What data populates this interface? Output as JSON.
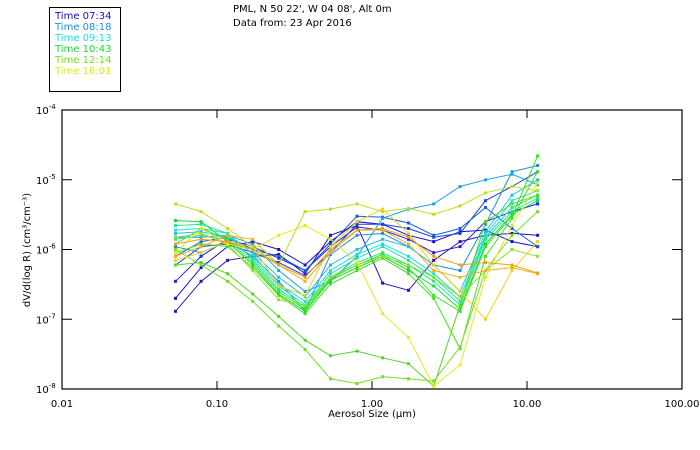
{
  "header": {
    "location": "PML, N 50 22', W 04 08', Alt 0m",
    "date": "Data from: 23 Apr 2016"
  },
  "legend": [
    {
      "label": "Time 07:34",
      "color": "#1010d0"
    },
    {
      "label": "Time 08:18",
      "color": "#1e8fe0"
    },
    {
      "label": "Time 09:13",
      "color": "#20e0d8"
    },
    {
      "label": "Time 10:43",
      "color": "#18d830"
    },
    {
      "label": "Time 12:14",
      "color": "#70e020"
    },
    {
      "label": "Time 16:01",
      "color": "#d8e820"
    }
  ],
  "chart_data": {
    "type": "line",
    "xscale": "log",
    "yscale": "log",
    "xlabel": "Aerosol Size (µm)",
    "ylabel": "dV/d(log R) (cm³/cm⁻³)",
    "xlim": [
      0.01,
      100
    ],
    "ylim": [
      1e-08,
      0.0001
    ],
    "xticks": [
      "0.01",
      "0.10",
      "1.00",
      "10.00",
      "100.00"
    ],
    "yticks": [
      {
        "base": "10",
        "exp": "-4",
        "value": 0.0001
      },
      {
        "base": "10",
        "exp": "-5",
        "value": 1e-05
      },
      {
        "base": "10",
        "exp": "-6",
        "value": 1e-06
      },
      {
        "base": "10",
        "exp": "-7",
        "value": 1e-07
      },
      {
        "base": "10",
        "exp": "-8",
        "value": 1e-08
      }
    ],
    "x": [
      0.054,
      0.079,
      0.117,
      0.17,
      0.25,
      0.37,
      0.54,
      0.8,
      1.17,
      1.72,
      2.5,
      3.7,
      5.4,
      8.0,
      11.7
    ],
    "series": [
      {
        "name": "s1",
        "color": "#3010b0",
        "values": [
          1.3e-07,
          3.5e-07,
          7e-07,
          8e-07,
          8.5e-07,
          4.5e-07,
          1.6e-06,
          2.2e-06,
          3.3e-07,
          2.6e-07,
          7e-07,
          1.3e-06,
          1.6e-06,
          1.7e-06,
          1.6e-06
        ]
      },
      {
        "name": "s2",
        "color": "#1010d0",
        "values": [
          2e-07,
          5.5e-07,
          1.1e-06,
          1.3e-06,
          1e-06,
          6e-07,
          1.3e-06,
          2.5e-06,
          2.3e-06,
          1.6e-06,
          1.3e-06,
          1.8e-06,
          1.9e-06,
          1.3e-06,
          1.1e-06
        ]
      },
      {
        "name": "s3",
        "color": "#2020e8",
        "values": [
          3.5e-07,
          8e-07,
          1.4e-06,
          1.1e-06,
          7.5e-07,
          5e-07,
          1.1e-06,
          2.1e-06,
          1.9e-06,
          1.4e-06,
          9e-07,
          1.1e-06,
          2.5e-06,
          3.5e-06,
          4.5e-06
        ]
      },
      {
        "name": "s4",
        "color": "#1a40e0",
        "values": [
          6e-07,
          1.1e-06,
          1.2e-06,
          9e-07,
          6.5e-07,
          4.2e-07,
          9e-07,
          2.3e-06,
          2.3e-06,
          2e-06,
          1.5e-06,
          1.7e-06,
          5e-06,
          8e-06,
          1.3e-05
        ]
      },
      {
        "name": "s5",
        "color": "#1060e0",
        "values": [
          8e-07,
          1.3e-06,
          1.5e-06,
          1e-06,
          8e-07,
          5e-07,
          1.2e-06,
          3e-06,
          2.9e-06,
          2.4e-06,
          1.6e-06,
          2e-06,
          4e-06,
          2e-06,
          1.1e-06
        ]
      },
      {
        "name": "s6",
        "color": "#1e8fe0",
        "values": [
          1.1e-06,
          9e-07,
          1.3e-06,
          8e-07,
          3.5e-07,
          1.3e-07,
          8.5e-07,
          1.6e-06,
          1.7e-06,
          1.1e-06,
          6e-07,
          5e-07,
          2.3e-06,
          1.3e-05,
          1.6e-05
        ]
      },
      {
        "name": "s7",
        "color": "#1ea0e8",
        "values": [
          1.5e-06,
          1.5e-06,
          1.6e-06,
          1.2e-06,
          5e-07,
          2.5e-07,
          3.5e-07,
          8e-07,
          2.8e-06,
          3.8e-06,
          4.5e-06,
          8e-06,
          1e-05,
          1.2e-05,
          8.5e-06
        ]
      },
      {
        "name": "s8",
        "color": "#20c0e0",
        "values": [
          1.7e-06,
          1.8e-06,
          1.5e-06,
          9e-07,
          4e-07,
          2.1e-07,
          6e-07,
          1e-06,
          1.4e-06,
          1.1e-06,
          6e-07,
          2.5e-07,
          1.8e-06,
          6e-06,
          1e-05
        ]
      },
      {
        "name": "s9",
        "color": "#20e0d8",
        "values": [
          1.9e-06,
          2e-06,
          1.7e-06,
          8.5e-07,
          3.2e-07,
          1.8e-07,
          5e-07,
          8.5e-07,
          1.2e-06,
          8e-07,
          4.5e-07,
          2.1e-07,
          1.6e-06,
          5e-06,
          7e-06
        ]
      },
      {
        "name": "s10",
        "color": "#20e0b0",
        "values": [
          1.4e-06,
          1.6e-06,
          1.4e-06,
          7.5e-07,
          3e-07,
          1.6e-07,
          4.5e-07,
          7.5e-07,
          1.1e-06,
          7e-07,
          4e-07,
          1.8e-07,
          1.5e-06,
          4e-06,
          6e-06
        ]
      },
      {
        "name": "s11",
        "color": "#20e890",
        "values": [
          2.2e-06,
          2.3e-06,
          1.7e-06,
          7e-07,
          2.7e-07,
          1.5e-07,
          4e-07,
          6.5e-07,
          9e-07,
          6e-07,
          3.5e-07,
          1.6e-07,
          1.4e-06,
          3.5e-06,
          5.5e-06
        ]
      },
      {
        "name": "s12",
        "color": "#18d830",
        "values": [
          2.6e-06,
          2.5e-06,
          1.3e-06,
          6e-07,
          2.3e-07,
          1.3e-07,
          3.6e-07,
          5.5e-07,
          8e-07,
          5e-07,
          3e-07,
          1.4e-07,
          1.2e-06,
          3.2e-06,
          5e-06
        ]
      },
      {
        "name": "s13",
        "color": "#30e820",
        "values": [
          1.2e-06,
          2e-06,
          1.4e-06,
          6.5e-07,
          2.5e-07,
          1.4e-07,
          3.8e-07,
          6e-07,
          8.5e-07,
          5.5e-07,
          2.2e-07,
          1.3e-07,
          1.1e-06,
          3e-06,
          2.2e-05
        ]
      },
      {
        "name": "s14",
        "color": "#40e020",
        "values": [
          9e-07,
          1.2e-06,
          1.1e-06,
          5.5e-07,
          2.2e-07,
          1.2e-07,
          3.2e-07,
          5e-07,
          7.5e-07,
          4.5e-07,
          2e-07,
          3.8e-08,
          8e-07,
          2.8e-06,
          1.3e-05
        ]
      },
      {
        "name": "s15",
        "color": "#50d820",
        "values": [
          6e-07,
          6.5e-07,
          4.5e-07,
          2.3e-07,
          1.1e-07,
          5e-08,
          3e-08,
          3.5e-08,
          2.8e-08,
          2.3e-08,
          1.1e-08,
          1.6e-07,
          2.5e-06,
          4.5e-06,
          6e-06
        ]
      },
      {
        "name": "s16",
        "color": "#70e020",
        "values": [
          1e-06,
          6e-07,
          3.5e-07,
          1.8e-07,
          8e-08,
          3.7e-08,
          1.4e-08,
          1.2e-08,
          1.5e-08,
          1.4e-08,
          1.3e-08,
          4e-08,
          5e-07,
          1.6e-06,
          3.5e-06
        ]
      },
      {
        "name": "s17",
        "color": "#90e020",
        "values": [
          1.5e-06,
          1.7e-06,
          1.2e-06,
          5e-07,
          1.9e-07,
          1.6e-07,
          4e-07,
          6e-07,
          8e-07,
          6e-07,
          4e-07,
          2.1e-07,
          5e-07,
          1e-06,
          8e-07
        ]
      },
      {
        "name": "s18",
        "color": "#b8e020",
        "values": [
          4.5e-06,
          3.5e-06,
          2e-06,
          1.1e-06,
          6e-07,
          3.5e-06,
          3.8e-06,
          4.5e-06,
          3.5e-06,
          3.9e-06,
          3.2e-06,
          4.2e-06,
          6.5e-06,
          8e-06,
          7e-06
        ]
      },
      {
        "name": "s19",
        "color": "#e8e820",
        "values": [
          9e-07,
          2e-06,
          1.2e-06,
          1e-06,
          1.6e-06,
          2.2e-06,
          1.4e-06,
          6.5e-07,
          1.2e-07,
          5.5e-08,
          1.1e-08,
          2.2e-08,
          4e-07,
          2.2e-06,
          9e-06
        ]
      },
      {
        "name": "s20",
        "color": "#f0d020",
        "values": [
          7e-07,
          9e-07,
          1.3e-06,
          1.1e-06,
          3e-07,
          2.2e-07,
          1.1e-06,
          2.5e-06,
          3.8e-06,
          1.7e-06,
          6e-07,
          2.5e-07,
          1e-07,
          5e-07,
          1.3e-06
        ]
      },
      {
        "name": "s21",
        "color": "#f0b020",
        "values": [
          8e-07,
          1.1e-06,
          1.6e-06,
          1.4e-06,
          6e-07,
          3.5e-07,
          9e-07,
          1.9e-06,
          1.9e-06,
          1.2e-06,
          5e-07,
          4e-07,
          5e-07,
          5.5e-07,
          4.5e-07
        ]
      },
      {
        "name": "s22",
        "color": "#f0a010",
        "values": [
          1.2e-06,
          1.4e-06,
          1.3e-06,
          1e-06,
          6e-07,
          4e-07,
          1e-06,
          1.9e-06,
          2e-06,
          1.5e-06,
          8e-07,
          6e-07,
          6.5e-07,
          6e-07,
          4.6e-07
        ]
      }
    ]
  }
}
